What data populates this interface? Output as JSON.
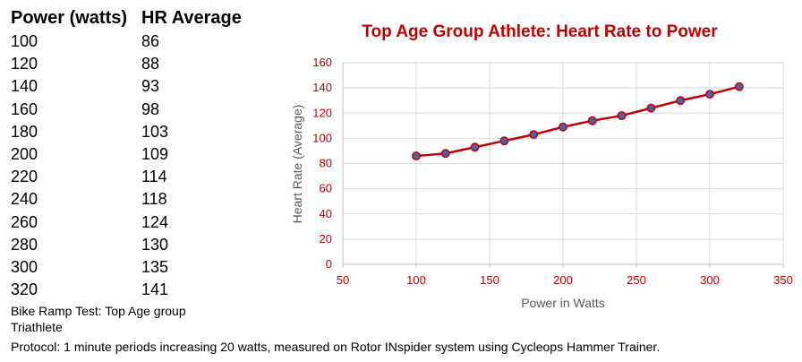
{
  "table": {
    "headers": [
      "Power (watts)",
      "HR Average"
    ],
    "rows": [
      [
        "100",
        "86"
      ],
      [
        "120",
        "88"
      ],
      [
        "140",
        "93"
      ],
      [
        "160",
        "98"
      ],
      [
        "180",
        "103"
      ],
      [
        "200",
        "109"
      ],
      [
        "220",
        "114"
      ],
      [
        "240",
        "118"
      ],
      [
        "260",
        "124"
      ],
      [
        "280",
        "130"
      ],
      [
        "300",
        "135"
      ],
      [
        "320",
        "141"
      ]
    ]
  },
  "notes": {
    "line1": "Bike Ramp Test:  Top Age group Triathlete",
    "line2": "Protocol: 1 minute periods increasing 20 watts, measured on Rotor INspider system using Cycleops Hammer Trainer."
  },
  "chart_data": {
    "type": "line",
    "title": "Top Age Group Athlete: Heart Rate to Power",
    "xlabel": "Power in Watts",
    "ylabel": "Heart Rate (Average)",
    "xlim": [
      50,
      350
    ],
    "ylim": [
      0,
      160
    ],
    "xticks": [
      50,
      100,
      150,
      200,
      250,
      300,
      350
    ],
    "yticks": [
      0,
      20,
      40,
      60,
      80,
      100,
      120,
      140,
      160
    ],
    "grid": true,
    "legend": "none",
    "x": [
      100,
      120,
      140,
      160,
      180,
      200,
      220,
      240,
      260,
      280,
      300,
      320
    ],
    "y": [
      86,
      88,
      93,
      98,
      103,
      109,
      114,
      118,
      124,
      130,
      135,
      141
    ],
    "colors": {
      "title": "#c00000",
      "line": "#c00000",
      "marker": "#4f5fa8",
      "tick_labels": "#c00000",
      "axis_labels": "#595959",
      "grid": "#d9d9d9"
    }
  }
}
